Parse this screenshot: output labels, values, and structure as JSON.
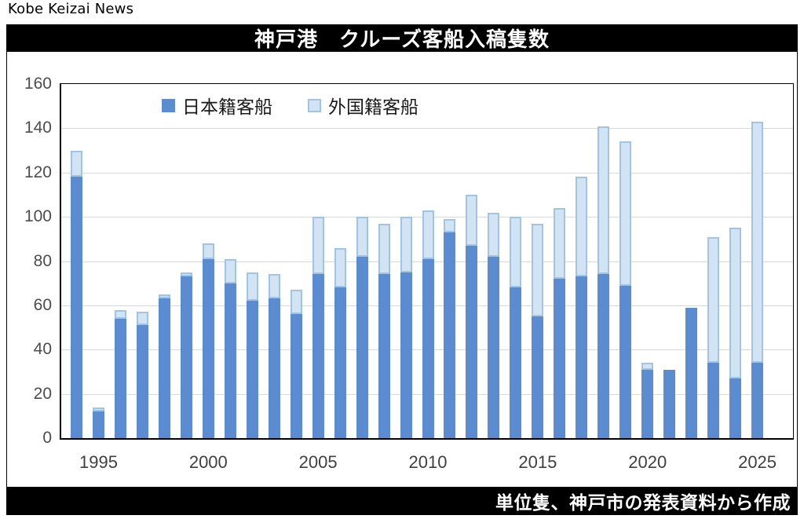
{
  "masthead": "Kobe Keizai News",
  "footer": {
    "note": "単位隻、神戸市の発表資料から作成"
  },
  "colors": {
    "japanese_fill": "#5B8BD0",
    "foreign_fill": "#D2E4F4",
    "foreign_border": "#9EC4E8",
    "gridline": "#D9D9D9",
    "title_bar_bg": "#000000",
    "title_bar_text": "#FFFFFF"
  },
  "chart_data": {
    "type": "bar",
    "stacked": true,
    "title": "神戸港　クルーズ客船入稿隻数",
    "categories": [
      1994,
      1995,
      1996,
      1997,
      1998,
      1999,
      2000,
      2001,
      2002,
      2003,
      2004,
      2005,
      2006,
      2007,
      2008,
      2009,
      2010,
      2011,
      2012,
      2013,
      2014,
      2015,
      2016,
      2017,
      2018,
      2019,
      2020,
      2021,
      2022,
      2023,
      2024,
      2025
    ],
    "series": [
      {
        "name": "日本籍客船",
        "values": [
          118,
          12,
          54,
          51,
          63,
          73,
          81,
          70,
          62,
          63,
          56,
          74,
          68,
          82,
          74,
          75,
          81,
          93,
          87,
          82,
          68,
          55,
          72,
          73,
          74,
          69,
          31,
          31,
          59,
          34,
          27,
          34
        ]
      },
      {
        "name": "外国籍客船",
        "values": [
          12,
          2,
          4,
          6,
          2,
          2,
          7,
          11,
          13,
          11,
          11,
          26,
          18,
          18,
          23,
          25,
          22,
          6,
          23,
          20,
          32,
          42,
          32,
          45,
          67,
          65,
          3,
          0,
          0,
          57,
          68,
          109
        ]
      }
    ],
    "totals": [
      130,
      14,
      58,
      57,
      65,
      75,
      88,
      81,
      75,
      74,
      67,
      100,
      86,
      100,
      97,
      100,
      103,
      99,
      110,
      102,
      100,
      97,
      104,
      118,
      141,
      134,
      34,
      31,
      59,
      91,
      95,
      143
    ],
    "ylim": [
      0,
      160
    ],
    "yticks": [
      0,
      20,
      40,
      60,
      80,
      100,
      120,
      140,
      160
    ],
    "xticks": [
      1995,
      2000,
      2005,
      2010,
      2015,
      2020,
      2025
    ],
    "grid": true,
    "legend_position": "top-inside",
    "unit": "隻"
  }
}
